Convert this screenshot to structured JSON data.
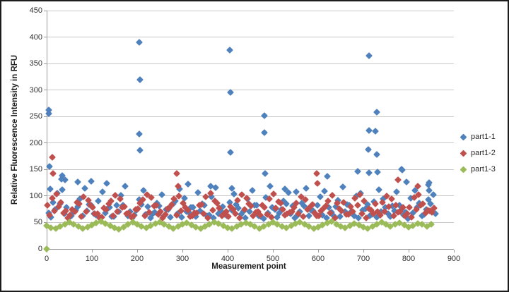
{
  "chart_data": {
    "type": "scatter",
    "title": "",
    "xlabel": "Measurement point",
    "ylabel": "Relative Fluorescence Intensity in RFU",
    "xlim": [
      0,
      900
    ],
    "ylim": [
      0,
      450
    ],
    "xticks": [
      0,
      100,
      200,
      300,
      400,
      500,
      600,
      700,
      800,
      900
    ],
    "yticks": [
      0,
      50,
      100,
      150,
      200,
      250,
      300,
      350,
      400,
      450
    ],
    "grid": "horizontal",
    "legend_position": "right",
    "marker": "diamond",
    "series": [
      {
        "name": "part1-1",
        "color": "#4F81BD",
        "bands": [
          {
            "x0": 4,
            "dx": 10,
            "values": [
              68,
              88,
              105,
              112,
              79,
              62,
              73,
              95,
              115,
              84,
              66,
              90,
              108,
              76,
              61,
              83,
              101,
              118,
              71,
              64,
              93,
              110,
              80,
              67,
              86,
              103,
              74,
              60,
              91,
              113,
              96,
              69,
              78,
              107,
              85,
              63,
              99,
              116,
              72,
              65,
              88,
              104,
              77,
              70,
              94,
              111,
              82,
              61,
              97,
              119,
              75,
              68,
              90,
              106,
              81,
              64,
              87,
              114,
              73,
              66,
              98,
              109,
              79,
              62,
              92,
              117,
              84,
              71,
              100,
              105,
              76,
              63,
              89,
              112,
              95,
              67,
              81,
              108,
              74,
              69,
              96,
              110,
              86,
              65,
              93,
              102
            ]
          },
          {
            "x0": 9,
            "dx": 10,
            "values": [
              60,
              74,
              85,
              66,
              58,
              70,
              80,
              62,
              72,
              83,
              64,
              57,
              68,
              79,
              61,
              71,
              82,
              63,
              58,
              73,
              84,
              65,
              59,
              69,
              81,
              62,
              74,
              85,
              66,
              60,
              70,
              78,
              61,
              72,
              83,
              64,
              58,
              67,
              80,
              62,
              73,
              84,
              65,
              59,
              71,
              82,
              63,
              57,
              68,
              79,
              60,
              74,
              85,
              66,
              58,
              70,
              81,
              62,
              72,
              83,
              64,
              59,
              69,
              80,
              61,
              71,
              82,
              63,
              58,
              73,
              84,
              65,
              60,
              70,
              78,
              61,
              72,
              83,
              64,
              57,
              68,
              79,
              62,
              74,
              85,
              66
            ]
          }
        ],
        "extra_points": [
          [
            4,
            262
          ],
          [
            5,
            256
          ],
          [
            6,
            156
          ],
          [
            8,
            113
          ],
          [
            33,
            132
          ],
          [
            35,
            138
          ],
          [
            41,
            130
          ],
          [
            68,
            126
          ],
          [
            98,
            128
          ],
          [
            133,
            124
          ],
          [
            205,
            390
          ],
          [
            207,
            320
          ],
          [
            205,
            217
          ],
          [
            206,
            187
          ],
          [
            312,
            122
          ],
          [
            363,
            118
          ],
          [
            405,
            375
          ],
          [
            407,
            295
          ],
          [
            406,
            182
          ],
          [
            410,
            114
          ],
          [
            481,
            251
          ],
          [
            481,
            220
          ],
          [
            483,
            143
          ],
          [
            526,
            113
          ],
          [
            551,
            108
          ],
          [
            620,
            137
          ],
          [
            688,
            147
          ],
          [
            712,
            365
          ],
          [
            729,
            258
          ],
          [
            712,
            224
          ],
          [
            727,
            222
          ],
          [
            711,
            188
          ],
          [
            730,
            178
          ],
          [
            712,
            144
          ],
          [
            731,
            145
          ],
          [
            784,
            151
          ],
          [
            786,
            149
          ],
          [
            796,
            127
          ],
          [
            843,
            121
          ],
          [
            845,
            125
          ],
          [
            846,
            110
          ]
        ]
      },
      {
        "name": "part1-2",
        "color": "#C0504D",
        "bands": [
          {
            "x0": 2,
            "dx": 10,
            "values": [
              82,
              96,
              104,
              88,
              72,
              64,
              70,
              85,
              99,
              92,
              78,
              66,
              60,
              74,
              90,
              101,
              95,
              80,
              68,
              62,
              76,
              93,
              103,
              97,
              83,
              71,
              65,
              79,
              94,
              100,
              86,
              73,
              63,
              68,
              84,
              98,
              105,
              91,
              77,
              67,
              61,
              75,
              92,
              102,
              96,
              81,
              69,
              64,
              78,
              95,
              104,
              89,
              74,
              66,
              70,
              86,
              99,
              93,
              79,
              68,
              62,
              77,
              91,
              101,
              87,
              72,
              65,
              80,
              96,
              103,
              90,
              76,
              67,
              71,
              88,
              100,
              94,
              82,
              70,
              63,
              79,
              97,
              102,
              85,
              73,
              69
            ]
          },
          {
            "x0": 7,
            "dx": 10,
            "values": [
              64,
              72,
              80,
              68,
              58,
              75,
              88,
              61,
              70,
              83,
              66,
              59,
              77,
              85,
              63,
              71,
              79,
              67,
              60,
              74,
              86,
              62,
              69,
              81,
              65,
              58,
              76,
              84,
              64,
              72,
              78,
              61,
              68,
              82,
              66,
              59,
              73,
              87,
              63,
              70,
              80,
              67,
              58,
              75,
              85,
              62,
              71,
              83,
              65,
              60,
              77,
              86,
              64,
              69,
              79,
              66,
              61,
              74,
              84,
              63,
              72,
              81,
              68,
              59,
              76,
              88,
              65,
              70,
              82,
              67,
              58,
              73,
              85,
              64,
              71,
              80,
              62,
              69,
              78,
              66,
              60,
              75,
              83,
              68,
              72,
              77
            ]
          }
        ],
        "extra_points": [
          [
            13,
            173
          ],
          [
            14,
            143
          ],
          [
            288,
            142
          ],
          [
            291,
            119
          ],
          [
            597,
            143
          ],
          [
            599,
            124
          ],
          [
            776,
            130
          ],
          [
            820,
            119
          ]
        ]
      },
      {
        "name": "part1-3",
        "color": "#9BBB59",
        "bands": [
          {
            "x0": 0,
            "dx": 10,
            "values": [
              44,
              40,
              38,
              42,
              47,
              50,
              46,
              43,
              39,
              41,
              45,
              49,
              52,
              48,
              44,
              40,
              37,
              41,
              46,
              50,
              47,
              43,
              40,
              44,
              48,
              51,
              46,
              42,
              38,
              42,
              46,
              49,
              45,
              41,
              39,
              43,
              47,
              50,
              48,
              44,
              40,
              38,
              42,
              46,
              49,
              46,
              42,
              39,
              43,
              47,
              51,
              47,
              43,
              40,
              44,
              48,
              50,
              46,
              42,
              38,
              41,
              45,
              49,
              52,
              47,
              43,
              40,
              44,
              48,
              45,
              41,
              38,
              42,
              46,
              50,
              47,
              43,
              46,
              49,
              45,
              41,
              44,
              48,
              46,
              43,
              47
            ]
          }
        ],
        "extra_points": [
          [
            0,
            0
          ]
        ]
      }
    ]
  }
}
